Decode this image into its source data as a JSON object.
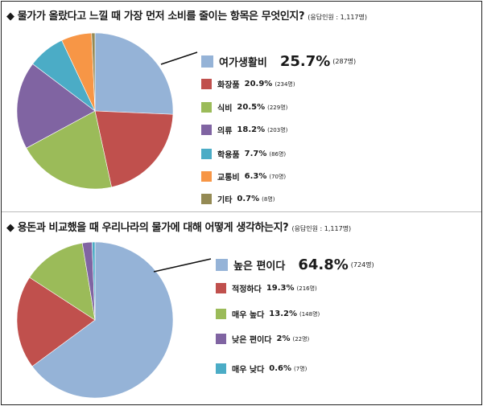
{
  "questions": [
    {
      "title": "◆ 물가가 올랐다고 느낄 때 가장 먼저 소비를 줄이는 항목은 무엇인지?",
      "respondents": "(응답인원 : 1,117명)"
    },
    {
      "title": "◆ 용돈과 비교했을 때 우리나라의 물가에 대해 어떻게 생각하는지?",
      "respondents": "(응답인원 : 1,117명)"
    }
  ],
  "colors": {
    "blue": "#95B3D7",
    "red": "#C0504D",
    "green": "#9BBB59",
    "purple": "#8064A2",
    "teal": "#4BACC6",
    "orange": "#F79646",
    "olive": "#948A54"
  },
  "chart_data": [
    {
      "type": "pie",
      "title": "◆ 물가가 올랐다고 느낄 때 가장 먼저 소비를 줄이는 항목은 무엇인지?",
      "categories": [
        "여가생활비",
        "화장품",
        "식비",
        "의류",
        "학용품",
        "교통비",
        "기타"
      ],
      "values": [
        25.7,
        20.9,
        20.5,
        18.2,
        7.7,
        6.3,
        0.7
      ],
      "labels": [
        "25.7%",
        "20.9%",
        "20.5%",
        "18.2%",
        "7.7%",
        "6.3%",
        "0.7%"
      ],
      "counts": [
        "(287명)",
        "(234명)",
        "(229명)",
        "(203명)",
        "(86명)",
        "(70명)",
        "(8명)"
      ],
      "colors": [
        "#95B3D7",
        "#C0504D",
        "#9BBB59",
        "#8064A2",
        "#4BACC6",
        "#F79646",
        "#948A54"
      ],
      "start": "12 o'clock, clockwise",
      "legend_position": "right"
    },
    {
      "type": "pie",
      "title": "◆ 용돈과 비교했을 때 우리나라의 물가에 대해 어떻게 생각하는지?",
      "categories": [
        "높은 편이다",
        "적정하다",
        "매우 높다",
        "낮은 편이다",
        "매우 낮다"
      ],
      "values": [
        64.8,
        19.3,
        13.2,
        2,
        0.6
      ],
      "labels": [
        "64.8%",
        "19.3%",
        "13.2%",
        "2%",
        "0.6%"
      ],
      "counts": [
        "(724명)",
        "(216명)",
        "(148명)",
        "(22명)",
        "(7명)"
      ],
      "colors": [
        "#95B3D7",
        "#C0504D",
        "#9BBB59",
        "#8064A2",
        "#4BACC6"
      ],
      "start": "12 o'clock, clockwise",
      "legend_position": "right"
    }
  ]
}
